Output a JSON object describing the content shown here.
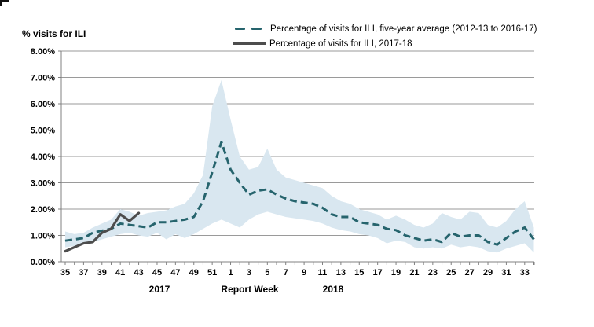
{
  "meta": {
    "artifact": "screenshot-corner-mark"
  },
  "legend": {
    "items": [
      {
        "label": "Percentage of visits for ILI, five-year average (2012-13 to 2016-17)",
        "style": "dashed",
        "color": "#26646d"
      },
      {
        "label": "Percentage of visits for ILI, 2017-18",
        "style": "solid",
        "color": "#4d4d4d"
      }
    ]
  },
  "colors": {
    "band": "#d9e7f0",
    "five_year_line": "#26646d",
    "current_line": "#4d4d4d",
    "grid": "#9a9a9a",
    "axis": "#808080",
    "text": "#000000"
  },
  "chart_data": {
    "type": "line",
    "title": "",
    "ylabel": "% visits for ILI",
    "xlabel": "Report Week",
    "x_year_labels": [
      "2017",
      "2018"
    ],
    "ylim": [
      0,
      8
    ],
    "y_tick_labels": [
      "0.00%",
      "1.00%",
      "2.00%",
      "3.00%",
      "4.00%",
      "5.00%",
      "6.00%",
      "7.00%",
      "8.00%"
    ],
    "grid": "horizontal",
    "legend_position": "top",
    "x_weeks": [
      35,
      36,
      37,
      38,
      39,
      40,
      41,
      42,
      43,
      44,
      45,
      46,
      47,
      48,
      49,
      50,
      51,
      52,
      1,
      2,
      3,
      4,
      5,
      6,
      7,
      8,
      9,
      10,
      11,
      12,
      13,
      14,
      15,
      16,
      17,
      18,
      19,
      20,
      21,
      22,
      23,
      24,
      25,
      26,
      27,
      28,
      29,
      30,
      31,
      32,
      33,
      34
    ],
    "x_label_every": 2,
    "series": [
      {
        "name": "Percentage of visits for ILI, five-year average (2012-13 to 2016-17)",
        "style": "dashed",
        "color": "#26646d",
        "values": [
          0.8,
          0.85,
          0.9,
          1.1,
          1.18,
          1.25,
          1.45,
          1.4,
          1.35,
          1.3,
          1.5,
          1.5,
          1.55,
          1.6,
          1.7,
          2.3,
          3.4,
          4.55,
          3.5,
          3.0,
          2.55,
          2.7,
          2.75,
          2.55,
          2.4,
          2.3,
          2.25,
          2.2,
          2.05,
          1.8,
          1.7,
          1.7,
          1.5,
          1.45,
          1.4,
          1.25,
          1.2,
          1.0,
          0.9,
          0.8,
          0.85,
          0.75,
          1.1,
          0.95,
          1.0,
          1.0,
          0.75,
          0.65,
          0.9,
          1.15,
          1.3,
          0.85
        ]
      },
      {
        "name": "Percentage of visits for ILI, 2017-18",
        "style": "solid",
        "color": "#4d4d4d",
        "start_week": 35,
        "start_index": 0,
        "values": [
          0.4,
          0.55,
          0.7,
          0.75,
          1.1,
          1.25,
          1.8,
          1.55,
          1.85
        ]
      }
    ],
    "band": {
      "name": "five-year min-max range",
      "color": "#d9e7f0",
      "upper": [
        1.15,
        1.05,
        1.1,
        1.3,
        1.45,
        1.6,
        2.0,
        1.9,
        1.75,
        1.85,
        1.9,
        1.95,
        2.1,
        2.2,
        2.6,
        3.3,
        5.9,
        6.9,
        5.4,
        4.0,
        3.5,
        3.6,
        4.3,
        3.5,
        3.2,
        3.1,
        3.0,
        2.9,
        2.8,
        2.5,
        2.3,
        2.2,
        2.0,
        1.9,
        1.8,
        1.6,
        1.75,
        1.6,
        1.4,
        1.3,
        1.45,
        1.85,
        1.7,
        1.6,
        1.9,
        1.85,
        1.4,
        1.3,
        1.55,
        2.0,
        2.3,
        1.3
      ],
      "lower": [
        0.55,
        0.6,
        0.65,
        0.75,
        0.85,
        0.95,
        1.05,
        1.1,
        1.0,
        0.95,
        1.1,
        0.85,
        1.05,
        0.9,
        1.05,
        1.25,
        1.45,
        1.6,
        1.45,
        1.3,
        1.6,
        1.8,
        1.9,
        1.8,
        1.7,
        1.65,
        1.6,
        1.55,
        1.45,
        1.3,
        1.2,
        1.15,
        1.05,
        1.0,
        0.9,
        0.7,
        0.8,
        0.75,
        0.55,
        0.5,
        0.55,
        0.5,
        0.65,
        0.55,
        0.6,
        0.55,
        0.4,
        0.35,
        0.5,
        0.6,
        0.7,
        0.35
      ]
    }
  }
}
